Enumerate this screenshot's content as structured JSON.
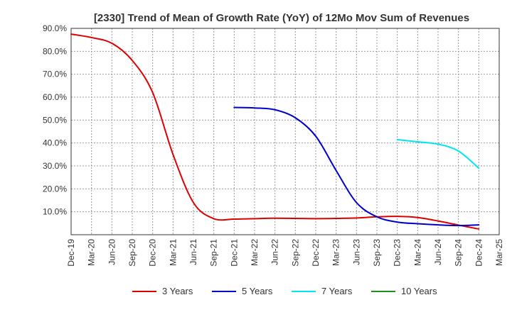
{
  "chart_data": {
    "type": "line",
    "title": "[2330]  Trend of Mean of Growth Rate (YoY) of 12Mo Mov Sum of Revenues",
    "xlabel": "",
    "ylabel": "",
    "ylim": [
      0,
      90
    ],
    "y_ticks": [
      10,
      20,
      30,
      40,
      50,
      60,
      70,
      80,
      90
    ],
    "y_tick_labels": [
      "10.0%",
      "20.0%",
      "30.0%",
      "40.0%",
      "50.0%",
      "60.0%",
      "70.0%",
      "80.0%",
      "90.0%"
    ],
    "x_ticks": [
      "Dec-19",
      "Mar-20",
      "Jun-20",
      "Sep-20",
      "Dec-20",
      "Mar-21",
      "Jun-21",
      "Sep-21",
      "Dec-21",
      "Mar-22",
      "Jun-22",
      "Sep-22",
      "Dec-22",
      "Mar-23",
      "Jun-23",
      "Sep-23",
      "Dec-23",
      "Mar-24",
      "Jun-24",
      "Sep-24",
      "Dec-24",
      "Mar-25"
    ],
    "grid": true,
    "legend_position": "bottom",
    "series": [
      {
        "name": "3 Years",
        "color": "#dd0000",
        "points": [
          [
            0,
            87.5
          ],
          [
            1,
            86
          ],
          [
            2,
            83.5
          ],
          [
            3,
            76
          ],
          [
            4,
            62
          ],
          [
            5,
            35
          ],
          [
            6,
            14
          ],
          [
            7,
            7
          ],
          [
            8,
            6.8
          ],
          [
            9,
            7
          ],
          [
            10,
            7.2
          ],
          [
            11,
            7.1
          ],
          [
            12,
            7
          ],
          [
            13,
            7.1
          ],
          [
            14,
            7.3
          ],
          [
            15,
            7.8
          ],
          [
            16,
            8
          ],
          [
            17,
            7.5
          ],
          [
            18,
            6
          ],
          [
            19,
            4.2
          ],
          [
            20,
            2.5
          ]
        ]
      },
      {
        "name": "5 Years",
        "color": "#0000cc",
        "points": [
          [
            8,
            55.5
          ],
          [
            9,
            55.3
          ],
          [
            10,
            54.5
          ],
          [
            11,
            51
          ],
          [
            12,
            43
          ],
          [
            13,
            28
          ],
          [
            14,
            14
          ],
          [
            15,
            7.8
          ],
          [
            16,
            5.5
          ],
          [
            17,
            4.8
          ],
          [
            18,
            4.3
          ],
          [
            19,
            4
          ],
          [
            20,
            4.3
          ]
        ]
      },
      {
        "name": "7 Years",
        "color": "#00e5ee",
        "points": [
          [
            16,
            41.5
          ],
          [
            17,
            40.5
          ],
          [
            18,
            39.5
          ],
          [
            19,
            36.5
          ],
          [
            20,
            29
          ]
        ]
      },
      {
        "name": "10 Years",
        "color": "#228b22",
        "points": []
      }
    ]
  }
}
